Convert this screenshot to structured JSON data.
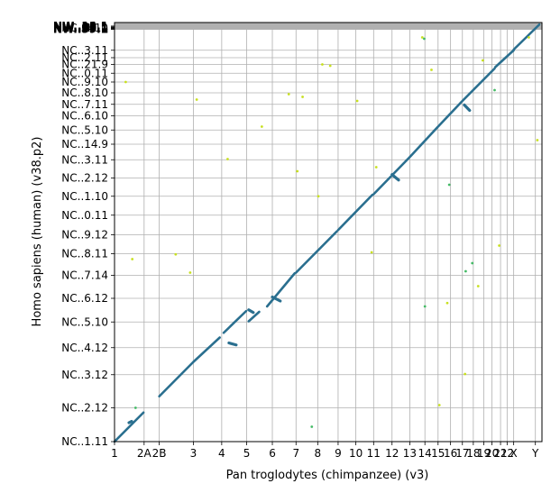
{
  "chart_data": {
    "type": "scatter",
    "title": "",
    "xlabel": "Pan troglodytes (chimpanzee) (v3)",
    "ylabel": "Homo sapiens (human) (v38.p2)",
    "grid": true,
    "xlim": [
      0,
      3250
    ],
    "ylim": [
      0,
      3100
    ],
    "x_ticks": [
      {
        "label": "1",
        "pos": 0
      },
      {
        "label": "2A",
        "pos": 225
      },
      {
        "label": "2B",
        "pos": 340
      },
      {
        "label": "3",
        "pos": 600
      },
      {
        "label": "4",
        "pos": 815
      },
      {
        "label": "5",
        "pos": 1005
      },
      {
        "label": "6",
        "pos": 1200
      },
      {
        "label": "7",
        "pos": 1380
      },
      {
        "label": "8",
        "pos": 1545
      },
      {
        "label": "9",
        "pos": 1700
      },
      {
        "label": "10",
        "pos": 1835
      },
      {
        "label": "11",
        "pos": 1970
      },
      {
        "label": "12",
        "pos": 2110
      },
      {
        "label": "13",
        "pos": 2245
      },
      {
        "label": "14",
        "pos": 2360
      },
      {
        "label": "15",
        "pos": 2460
      },
      {
        "label": "16",
        "pos": 2555
      },
      {
        "label": "17",
        "pos": 2645
      },
      {
        "label": "18",
        "pos": 2728
      },
      {
        "label": "19",
        "pos": 2808
      },
      {
        "label": "20",
        "pos": 2870
      },
      {
        "label": "21",
        "pos": 2935
      },
      {
        "label": "22",
        "pos": 2985
      },
      {
        "label": "X",
        "pos": 3035
      },
      {
        "label": "Y",
        "pos": 3200
      }
    ],
    "y_ticks": [
      {
        "label": "NC..1.11",
        "pos": 0
      },
      {
        "label": "NC..2.12",
        "pos": 250
      },
      {
        "label": "NC..3.12",
        "pos": 495
      },
      {
        "label": "NC..4.12",
        "pos": 695
      },
      {
        "label": "NC..5.10",
        "pos": 885
      },
      {
        "label": "NC..6.12",
        "pos": 1060
      },
      {
        "label": "NC..7.14",
        "pos": 1230
      },
      {
        "label": "NC..8.11",
        "pos": 1390
      },
      {
        "label": "NC..9.12",
        "pos": 1530
      },
      {
        "label": "NC..0.11",
        "pos": 1675
      },
      {
        "label": "NC..1.10",
        "pos": 1815
      },
      {
        "label": "NC..2.12",
        "pos": 1950
      },
      {
        "label": "NC..3.11",
        "pos": 2085
      },
      {
        "label": "NC..14.9",
        "pos": 2200
      },
      {
        "label": "NC..5.10",
        "pos": 2305
      },
      {
        "label": "NC..6.10",
        "pos": 2410
      },
      {
        "label": "NC..7.11",
        "pos": 2495
      },
      {
        "label": "NC..8.10",
        "pos": 2580
      },
      {
        "label": "NC..9.10",
        "pos": 2660
      },
      {
        "label": "NC..0.11",
        "pos": 2725
      },
      {
        "label": "NC..21.9",
        "pos": 2790
      },
      {
        "label": "NC..2.11",
        "pos": 2840
      },
      {
        "label": "NC..3.11",
        "pos": 2895
      },
      {
        "label": "NC..4.10",
        "pos": 3060
      }
    ],
    "top_cluster_labels": [
      "NW..13.1",
      "NW..08.1",
      "NW..86.1",
      "NW..97.1",
      "NW..14.1",
      "NW..60.1",
      "NW..23.1",
      "NW..59.1"
    ],
    "series": [
      {
        "color": "#2a6f8f",
        "segments": [
          [
            [
              0,
              0
            ],
            [
              220,
              215
            ]
          ],
          [
            [
              340,
              335
            ],
            [
              595,
              585
            ]
          ],
          [
            [
              600,
              590
            ],
            [
              800,
              770
            ]
          ],
          [
            [
              830,
              805
            ],
            [
              1000,
              965
            ]
          ],
          [
            [
              1020,
              890
            ],
            [
              1100,
              960
            ]
          ],
          [
            [
              1160,
              1000
            ],
            [
              1370,
              1245
            ]
          ],
          [
            [
              1380,
              1250
            ],
            [
              1690,
              1555
            ]
          ],
          [
            [
              1700,
              1565
            ],
            [
              1960,
              1825
            ]
          ],
          [
            [
              1970,
              1830
            ],
            [
              2100,
              1960
            ]
          ],
          [
            [
              2110,
              1970
            ],
            [
              2240,
              2100
            ]
          ],
          [
            [
              2245,
              2105
            ],
            [
              2455,
              2325
            ]
          ],
          [
            [
              2460,
              2330
            ],
            [
              2640,
              2515
            ]
          ],
          [
            [
              2645,
              2520
            ],
            [
              2890,
              2760
            ]
          ],
          [
            [
              2895,
              2770
            ],
            [
              3035,
              2895
            ]
          ],
          [
            [
              3035,
              2900
            ],
            [
              3230,
              3085
            ]
          ]
        ],
        "inversions": [
          [
            [
              110,
              140
            ],
            [
              130,
              150
            ]
          ],
          [
            [
              870,
              730
            ],
            [
              925,
              715
            ]
          ],
          [
            [
              1020,
              975
            ],
            [
              1055,
              955
            ]
          ],
          [
            [
              2110,
              1975
            ],
            [
              2160,
              1935
            ]
          ],
          [
            [
              2660,
              2490
            ],
            [
              2700,
              2450
            ]
          ],
          [
            [
              1200,
              1070
            ],
            [
              1260,
              1040
            ]
          ]
        ]
      },
      {
        "color": "#c8e020",
        "points": [
          [
            85,
            2660
          ],
          [
            135,
            1350
          ],
          [
            465,
            1385
          ],
          [
            575,
            1250
          ],
          [
            625,
            2530
          ],
          [
            860,
            2090
          ],
          [
            1120,
            2330
          ],
          [
            1325,
            2570
          ],
          [
            1390,
            2000
          ],
          [
            1430,
            2550
          ],
          [
            1550,
            1815
          ],
          [
            1580,
            2790
          ],
          [
            1640,
            2780
          ],
          [
            1845,
            2520
          ],
          [
            1955,
            1400
          ],
          [
            1990,
            2030
          ],
          [
            2340,
            2990
          ],
          [
            2410,
            2750
          ],
          [
            2470,
            270
          ],
          [
            2530,
            1025
          ],
          [
            2665,
            500
          ],
          [
            2765,
            1150
          ],
          [
            2800,
            2820
          ],
          [
            2925,
            1450
          ],
          [
            3150,
            2990
          ],
          [
            3215,
            2230
          ]
        ]
      },
      {
        "color": "#44bb66",
        "points": [
          [
            160,
            250
          ],
          [
            2355,
            2980
          ],
          [
            2545,
            1900
          ],
          [
            1500,
            110
          ],
          [
            2670,
            1260
          ],
          [
            2720,
            1320
          ],
          [
            2890,
            2600
          ],
          [
            2360,
            1000
          ]
        ]
      }
    ]
  }
}
